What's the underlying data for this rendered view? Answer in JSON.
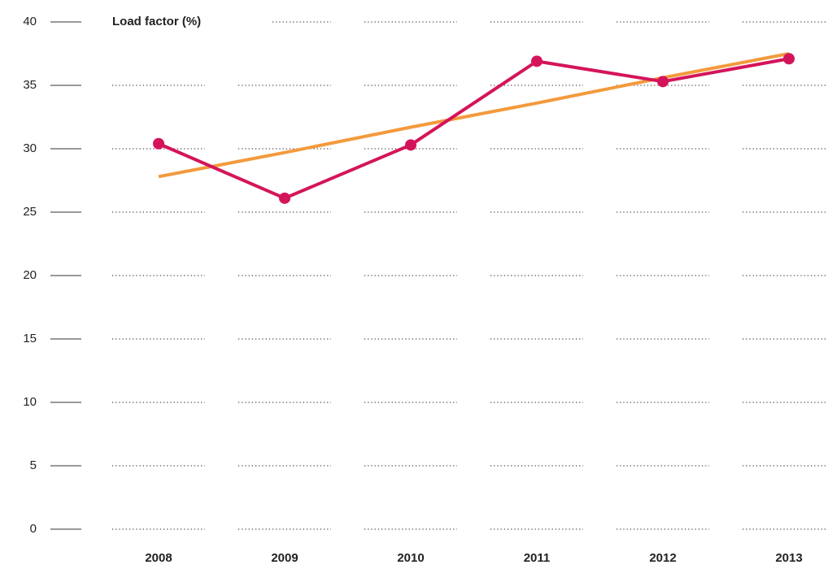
{
  "chart_data": {
    "type": "line",
    "title": "Load factor (%)",
    "categories": [
      "2008",
      "2009",
      "2010",
      "2011",
      "2012",
      "2013"
    ],
    "series": [
      {
        "color": "#f39a3d",
        "values": [
          27.8,
          29.7,
          31.7,
          33.6,
          35.6,
          37.5
        ],
        "markers": false
      },
      {
        "color": "#d4145a",
        "values": [
          30.4,
          26.1,
          30.3,
          36.9,
          35.3,
          37.1
        ],
        "markers": true
      }
    ],
    "ylim": [
      0,
      40
    ],
    "yticks": [
      0,
      5,
      10,
      15,
      20,
      25,
      30,
      35,
      40
    ],
    "grid": true
  }
}
